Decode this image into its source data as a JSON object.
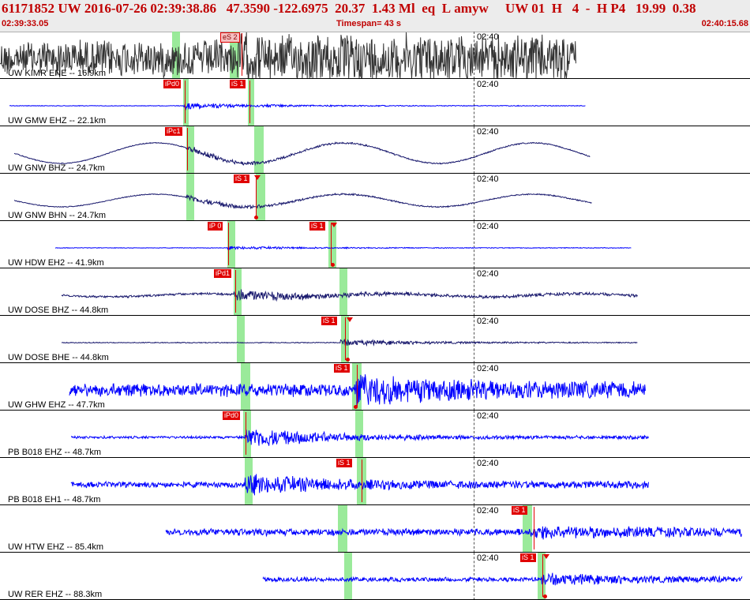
{
  "header": {
    "event_id": "61171852",
    "network": "UW",
    "datetime": "2016-07-26 02:39:38.86",
    "latitude": "47.3590",
    "longitude": "-122.6975",
    "depth": "20.37",
    "magnitude": "1.43 Ml",
    "event_type": "eq",
    "flag": "L",
    "author": "amyw",
    "source_net": "UW 01",
    "code_h": "H",
    "count": "4",
    "dash": "-",
    "h_p4": "H P4",
    "value_a": "19.99",
    "value_b": "0.38",
    "start_time": "02:39:33.05",
    "timespan": "Timespan=  43 s",
    "end_time": "02:40:15.68"
  },
  "colors": {
    "header_text": "#c00000",
    "header_bg": "#ececec",
    "trace_blue": "#0000ff",
    "trace_navy": "#1a1a6e",
    "trace_black": "#333333",
    "pick_red": "#e00000",
    "window_green": "#8fe88f"
  },
  "time_tick": "02:40",
  "traces": [
    {
      "label": "UW KIMR ENE -- 16.9km",
      "color": "#333333",
      "start": 0,
      "end": 730,
      "amp": 26,
      "noise": 1.0,
      "onset": 300,
      "boost": 1.1,
      "long": 0,
      "greens": [
        [
          218,
          10
        ],
        [
          291,
          12
        ]
      ],
      "picks": [
        {
          "text": "eS 2",
          "x": 279,
          "hollow": true
        }
      ],
      "lines": [
        306
      ],
      "dots": [],
      "tris": []
    },
    {
      "label": "UW GMW EHZ -- 22.1km",
      "color": "#0000ff",
      "start": 12,
      "end": 742,
      "amp": 2,
      "noise": 0.2,
      "onset": 232,
      "boost": 12,
      "long": 0,
      "greens": [
        [
          232,
          7
        ],
        [
          314,
          8
        ]
      ],
      "picks": [
        {
          "text": "iPd0",
          "x": 207,
          "hollow": false
        },
        {
          "text": "iS 1",
          "x": 291,
          "hollow": false
        }
      ],
      "lines": [
        234,
        316
      ],
      "dots": [],
      "tris": []
    },
    {
      "label": "UW GNW BHZ -- 24.7km",
      "color": "#1a1a6e",
      "start": 18,
      "end": 748,
      "amp": 2,
      "noise": 0.3,
      "onset": 236,
      "boost": 8,
      "long": 13,
      "greens": [
        [
          236,
          10
        ],
        [
          322,
          12
        ]
      ],
      "picks": [
        {
          "text": "iPc1",
          "x": 209,
          "hollow": false
        }
      ],
      "lines": [
        237
      ],
      "dots": [],
      "tris": []
    },
    {
      "label": "UW GNW BHN -- 24.7km",
      "color": "#1a1a6e",
      "start": 18,
      "end": 750,
      "amp": 2,
      "noise": 0.3,
      "onset": 236,
      "boost": 8,
      "long": 8,
      "greens": [
        [
          236,
          10
        ],
        [
          324,
          12
        ]
      ],
      "picks": [
        {
          "text": "iS 1",
          "x": 296,
          "hollow": false
        }
      ],
      "lines": [
        324
      ],
      "dots": [
        324
      ],
      "tris": [
        326
      ]
    },
    {
      "label": "UW HDW EH2 -- 41.9km",
      "color": "#0000ff",
      "start": 70,
      "end": 800,
      "amp": 2,
      "noise": 0.2,
      "onset": 288,
      "boost": 6,
      "long": 0,
      "greens": [
        [
          288,
          10
        ],
        [
          416,
          10
        ]
      ],
      "picks": [
        {
          "text": "iP 0",
          "x": 263,
          "hollow": false
        },
        {
          "text": "iS 1",
          "x": 392,
          "hollow": false
        }
      ],
      "lines": [
        289,
        419
      ],
      "dots": [
        421
      ],
      "tris": [
        423
      ]
    },
    {
      "label": "UW DOSE BHZ -- 44.8km",
      "color": "#1a1a6e",
      "start": 78,
      "end": 808,
      "amp": 3,
      "noise": 0.5,
      "onset": 296,
      "boost": 6,
      "long": 2,
      "greens": [
        [
          296,
          10
        ],
        [
          430,
          10
        ]
      ],
      "picks": [
        {
          "text": "iPd1",
          "x": 271,
          "hollow": false
        }
      ],
      "lines": [
        298
      ],
      "dots": [],
      "tris": []
    },
    {
      "label": "UW DOSE BHE -- 44.8km",
      "color": "#1a1a6e",
      "start": 78,
      "end": 808,
      "amp": 2,
      "noise": 0.3,
      "onset": 430,
      "boost": 8,
      "long": 0,
      "greens": [
        [
          300,
          10
        ],
        [
          432,
          10
        ]
      ],
      "picks": [
        {
          "text": "iS 1",
          "x": 407,
          "hollow": false
        }
      ],
      "lines": [
        437
      ],
      "dots": [
        440
      ],
      "tris": [
        443
      ]
    },
    {
      "label": "UW GHW EHZ -- 47.7km",
      "color": "#0000ff",
      "start": 88,
      "end": 818,
      "amp": 9,
      "noise": 1.0,
      "onset": 450,
      "boost": 2.5,
      "long": 0,
      "greens": [
        [
          305,
          12
        ],
        [
          446,
          12
        ]
      ],
      "picks": [
        {
          "text": "iS 1",
          "x": 423,
          "hollow": false
        }
      ],
      "lines": [
        452
      ],
      "dots": [
        450
      ],
      "tris": []
    },
    {
      "label": "PB B018 EHZ -- 48.7km",
      "color": "#0000ff",
      "start": 90,
      "end": 822,
      "amp": 3,
      "noise": 0.6,
      "onset": 310,
      "boost": 9,
      "long": 0,
      "greens": [
        [
          308,
          10
        ],
        [
          450,
          10
        ]
      ],
      "picks": [
        {
          "text": "iPd0",
          "x": 282,
          "hollow": false
        }
      ],
      "lines": [
        311
      ],
      "dots": [],
      "tris": []
    },
    {
      "label": "PB B018 EH1 -- 48.7km",
      "color": "#0000ff",
      "start": 90,
      "end": 822,
      "amp": 5,
      "noise": 0.8,
      "onset": 310,
      "boost": 4,
      "long": 0,
      "greens": [
        [
          310,
          10
        ],
        [
          452,
          12
        ]
      ],
      "picks": [
        {
          "text": "iS 1",
          "x": 426,
          "hollow": false
        }
      ],
      "lines": [
        458
      ],
      "dots": [],
      "tris": []
    },
    {
      "label": "UW HTW EHZ -- 85.4km",
      "color": "#0000ff",
      "start": 210,
      "end": 940,
      "amp": 6,
      "noise": 0.8,
      "onset": 672,
      "boost": 2,
      "long": 0,
      "greens": [
        [
          428,
          12
        ],
        [
          662,
          12
        ]
      ],
      "picks": [
        {
          "text": "iS 1",
          "x": 648,
          "hollow": false
        }
      ],
      "lines": [
        676
      ],
      "dots": [],
      "tris": []
    },
    {
      "label": "UW RER EHZ -- 88.3km",
      "color": "#0000ff",
      "start": 333,
      "end": 940,
      "amp": 5,
      "noise": 0.6,
      "onset": 686,
      "boost": 3,
      "long": 0,
      "greens": [
        [
          436,
          10
        ],
        [
          681,
          10
        ]
      ],
      "picks": [
        {
          "text": "iS 1",
          "x": 659,
          "hollow": false
        }
      ],
      "lines": [
        687
      ],
      "dots": [
        690
      ],
      "tris": [
        692
      ]
    }
  ]
}
